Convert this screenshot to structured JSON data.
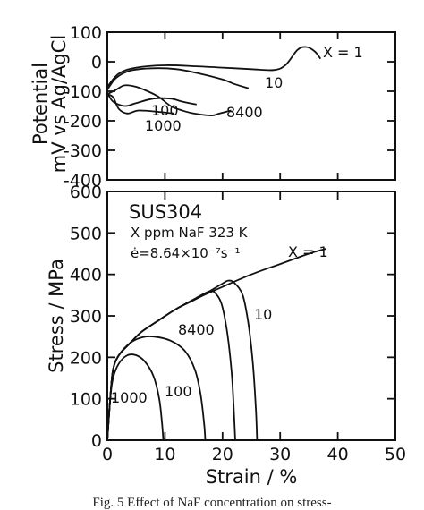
{
  "chart_data": [
    {
      "type": "line",
      "panel": "top",
      "ylabel_lines": [
        "Potential",
        "mV vs Ag/AgCl"
      ],
      "ylim": [
        -400,
        100
      ],
      "xlim": [
        0,
        50
      ],
      "yticks": [
        100,
        0,
        -100,
        -200,
        -300,
        -400
      ],
      "ytick_labels": [
        "100",
        "0",
        "-100",
        "-200",
        "-300",
        "-400"
      ],
      "series": [
        {
          "name": "X = 1",
          "label": "X = 1",
          "x": [
            0,
            2,
            5,
            10,
            15,
            20,
            25,
            29,
            31,
            33,
            34.5,
            36,
            37
          ],
          "y": [
            -85,
            -40,
            -20,
            -12,
            -15,
            -20,
            -25,
            -28,
            -10,
            40,
            50,
            35,
            10
          ]
        },
        {
          "name": "10",
          "label": "10",
          "x": [
            0,
            1.5,
            4,
            8,
            12,
            16,
            20,
            22,
            24.5
          ],
          "y": [
            -95,
            -55,
            -30,
            -22,
            -25,
            -40,
            -60,
            -75,
            -90
          ]
        },
        {
          "name": "100",
          "label": "100",
          "x": [
            0,
            1,
            3,
            5,
            8,
            11,
            13,
            15.5
          ],
          "y": [
            -105,
            -135,
            -150,
            -140,
            -125,
            -125,
            -135,
            -145
          ]
        },
        {
          "name": "1000",
          "label": "1000",
          "x": [
            0,
            1,
            2,
            3.5,
            5.5,
            9,
            11.5
          ],
          "y": [
            -110,
            -120,
            -160,
            -175,
            -165,
            -170,
            -175
          ]
        },
        {
          "name": "8400",
          "label": "8400",
          "x": [
            0,
            1.5,
            3,
            5,
            7,
            9,
            11,
            13,
            15,
            18,
            19.5,
            21.5
          ],
          "y": [
            -110,
            -95,
            -80,
            -85,
            -100,
            -120,
            -150,
            -165,
            -175,
            -182,
            -175,
            -165
          ]
        }
      ]
    },
    {
      "type": "line",
      "panel": "bottom",
      "xlabel": "Strain  /  %",
      "ylabel": "Stress  /  MPa",
      "xlim": [
        0,
        50
      ],
      "ylim": [
        0,
        600
      ],
      "xticks": [
        0,
        10,
        20,
        30,
        40,
        50
      ],
      "xtick_labels": [
        "0",
        "10",
        "20",
        "30",
        "40",
        "50"
      ],
      "yticks": [
        0,
        100,
        200,
        300,
        400,
        500,
        600
      ],
      "ytick_labels": [
        "0",
        "100",
        "200",
        "300",
        "400",
        "500",
        "600"
      ],
      "annotations": [
        "SUS304",
        "X ppm  NaF   323 K",
        "ė=8.64×10⁻⁷s⁻¹"
      ],
      "series": [
        {
          "name": "X = 1",
          "label": "X = 1",
          "x": [
            0,
            0.5,
            1,
            2,
            4,
            6,
            9,
            12,
            16,
            20,
            25,
            30,
            35,
            38
          ],
          "y": [
            0,
            100,
            170,
            205,
            235,
            262,
            290,
            317,
            345,
            370,
            400,
            425,
            450,
            462
          ]
        },
        {
          "name": "10",
          "label": "10",
          "x": [
            0,
            0.5,
            1,
            2,
            4,
            6,
            9,
            12,
            16,
            20,
            21,
            22,
            23.5,
            24.5,
            25.3,
            25.8,
            26
          ],
          "y": [
            0,
            100,
            170,
            205,
            235,
            262,
            290,
            317,
            345,
            378,
            385,
            380,
            350,
            280,
            180,
            70,
            0
          ]
        },
        {
          "name": "8400",
          "label": "8400",
          "x": [
            0,
            0.5,
            1,
            2,
            4,
            6,
            9,
            12,
            15,
            17.5,
            18.5,
            19.8,
            20.8,
            21.6,
            22,
            22.2
          ],
          "y": [
            0,
            100,
            170,
            205,
            235,
            262,
            290,
            317,
            340,
            358,
            358,
            330,
            260,
            160,
            60,
            0
          ]
        },
        {
          "name": "100",
          "label": "100",
          "x": [
            0,
            0.5,
            1,
            2,
            4,
            6,
            8,
            11,
            13.5,
            15.2,
            16.2,
            16.8,
            17
          ],
          "y": [
            0,
            100,
            170,
            205,
            235,
            248,
            250,
            240,
            215,
            170,
            110,
            40,
            0
          ]
        },
        {
          "name": "1000",
          "label": "1000",
          "x": [
            0,
            0.5,
            1,
            2,
            3.5,
            5,
            6.5,
            8,
            9,
            9.5,
            9.7
          ],
          "y": [
            0,
            100,
            150,
            185,
            205,
            205,
            190,
            155,
            100,
            40,
            0
          ]
        }
      ]
    }
  ],
  "caption": "Fig. 5  Effect of NaF concentration on stress-"
}
